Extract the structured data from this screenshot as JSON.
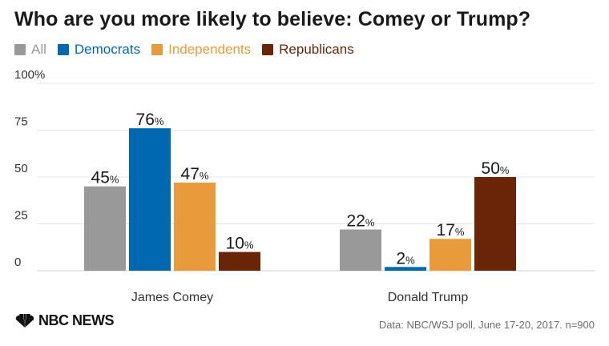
{
  "chart_data": {
    "type": "bar",
    "title": "Who are you more likely to believe: Comey or Trump?",
    "categories": [
      "James Comey",
      "Donald Trump"
    ],
    "series": [
      {
        "name": "All",
        "color": "#999999",
        "values": [
          45,
          22
        ]
      },
      {
        "name": "Democrats",
        "color": "#0068b0",
        "values": [
          76,
          2
        ]
      },
      {
        "name": "Independents",
        "color": "#e99b3c",
        "values": [
          47,
          17
        ]
      },
      {
        "name": "Republicans",
        "color": "#6a2408",
        "values": [
          10,
          50
        ]
      }
    ],
    "yticks": [
      "0",
      "25",
      "50",
      "75",
      "100%"
    ],
    "ytick_values": [
      0,
      25,
      50,
      75,
      100
    ],
    "ylim": [
      0,
      100
    ],
    "value_suffix": "%",
    "grid": true,
    "legend_position": "top-left"
  },
  "footer": {
    "logo_text": "NBC NEWS",
    "source": "Data: NBC/WSJ poll, June 17-20, 2017. n=900"
  }
}
